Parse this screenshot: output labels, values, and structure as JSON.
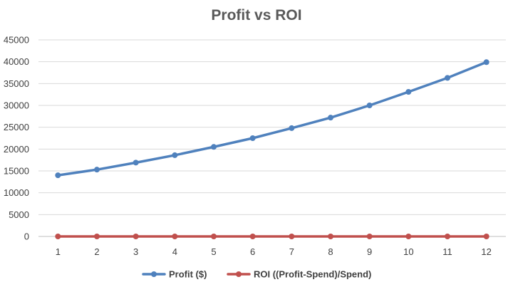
{
  "chart_data": {
    "type": "line",
    "title": "Profit vs ROI",
    "xlabel": "",
    "ylabel": "",
    "x": [
      1,
      2,
      3,
      4,
      5,
      6,
      7,
      8,
      9,
      10,
      11,
      12
    ],
    "ylim": [
      0,
      45000
    ],
    "yticks": [
      0,
      5000,
      10000,
      15000,
      20000,
      25000,
      30000,
      35000,
      40000,
      45000
    ],
    "grid": true,
    "legend_position": "bottom",
    "series": [
      {
        "name": "Profit ($)",
        "color": "#4F81BD",
        "values": [
          14000,
          15300,
          16900,
          18600,
          20500,
          22500,
          24800,
          27200,
          30000,
          33100,
          36300,
          39900
        ]
      },
      {
        "name": "ROI ((Profit-Spend)/Spend)",
        "color": "#C0504D",
        "values": [
          0,
          0,
          0,
          0,
          0,
          0,
          0,
          0,
          0,
          0,
          0,
          0
        ]
      }
    ]
  }
}
